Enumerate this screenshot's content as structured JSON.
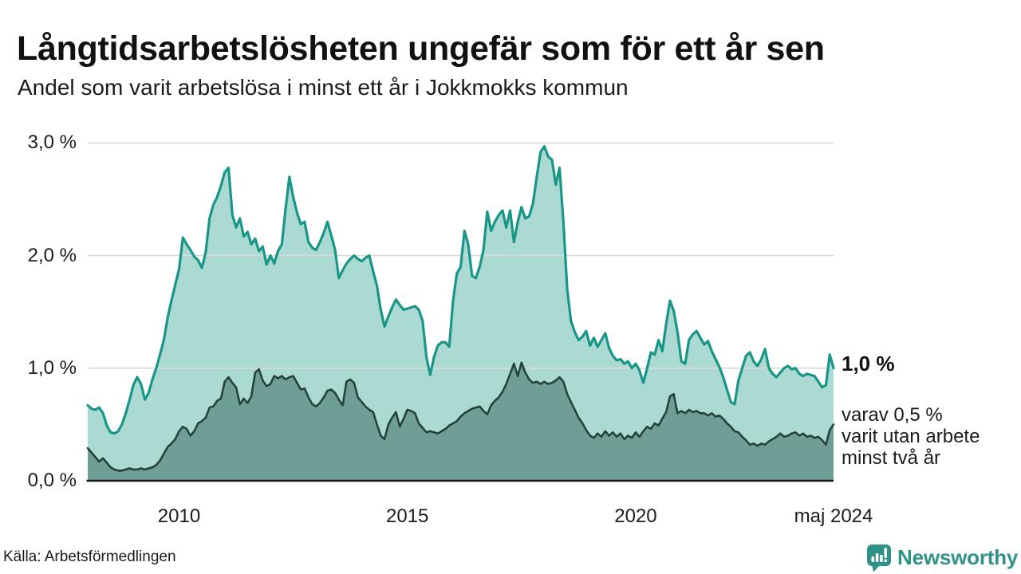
{
  "header": {
    "title": "Långtidsarbetslösheten ungefär som för ett år sen",
    "subtitle": "Andel som varit arbetslösa i minst ett år i Jokkmokks kommun"
  },
  "chart_data": {
    "type": "area",
    "x_start": "2008-01",
    "x_end": "2024-05",
    "x_interval": "monthly",
    "ylim": [
      0,
      3.0
    ],
    "grid": "horizontal",
    "y_ticks": [
      {
        "label": "3,0 %",
        "value": 3.0
      },
      {
        "label": "2,0 %",
        "value": 2.0
      },
      {
        "label": "1,0 %",
        "value": 1.0
      },
      {
        "label": "0,0 %",
        "value": 0.0
      }
    ],
    "x_ticks": [
      {
        "label": "2010",
        "month_index": 24
      },
      {
        "label": "2015",
        "month_index": 84
      },
      {
        "label": "2020",
        "month_index": 144
      },
      {
        "label": "maj 2024",
        "month_index": 196
      }
    ],
    "series": [
      {
        "name": "Andel arbetslösa minst ett år",
        "color": "#1a9689",
        "fill": "#abdad3",
        "values": [
          0.67,
          0.64,
          0.63,
          0.65,
          0.6,
          0.49,
          0.43,
          0.42,
          0.44,
          0.5,
          0.6,
          0.72,
          0.85,
          0.92,
          0.86,
          0.72,
          0.78,
          0.9,
          1.0,
          1.12,
          1.25,
          1.45,
          1.6,
          1.74,
          1.88,
          2.16,
          2.1,
          2.05,
          1.99,
          1.96,
          1.89,
          2.03,
          2.33,
          2.45,
          2.52,
          2.62,
          2.74,
          2.78,
          2.36,
          2.25,
          2.33,
          2.17,
          2.21,
          2.1,
          2.15,
          2.04,
          2.08,
          1.92,
          2.0,
          1.93,
          2.04,
          2.1,
          2.42,
          2.7,
          2.52,
          2.38,
          2.28,
          2.3,
          2.12,
          2.07,
          2.05,
          2.12,
          2.2,
          2.3,
          2.18,
          2.05,
          1.8,
          1.87,
          1.93,
          1.97,
          2.0,
          1.97,
          1.95,
          1.98,
          2.0,
          1.86,
          1.73,
          1.52,
          1.37,
          1.46,
          1.54,
          1.61,
          1.56,
          1.52,
          1.53,
          1.54,
          1.55,
          1.52,
          1.42,
          1.1,
          0.94,
          1.1,
          1.2,
          1.23,
          1.23,
          1.19,
          1.6,
          1.84,
          1.9,
          2.22,
          2.1,
          1.82,
          1.8,
          1.9,
          2.05,
          2.39,
          2.22,
          2.3,
          2.36,
          2.4,
          2.25,
          2.4,
          2.12,
          2.3,
          2.43,
          2.33,
          2.35,
          2.46,
          2.7,
          2.92,
          2.97,
          2.88,
          2.85,
          2.63,
          2.78,
          2.3,
          1.7,
          1.42,
          1.32,
          1.25,
          1.28,
          1.33,
          1.2,
          1.27,
          1.19,
          1.25,
          1.31,
          1.18,
          1.11,
          1.07,
          1.08,
          1.04,
          1.06,
          1.0,
          1.04,
          0.98,
          0.87,
          1.0,
          1.14,
          1.12,
          1.25,
          1.15,
          1.39,
          1.6,
          1.51,
          1.32,
          1.06,
          1.04,
          1.25,
          1.3,
          1.33,
          1.27,
          1.21,
          1.24,
          1.15,
          1.08,
          1.01,
          0.92,
          0.81,
          0.7,
          0.68,
          0.89,
          1.0,
          1.11,
          1.14,
          1.06,
          1.02,
          1.08,
          1.17,
          1.0,
          0.95,
          0.92,
          0.96,
          1.0,
          1.02,
          0.99,
          1.0,
          0.95,
          0.93,
          0.95,
          0.94,
          0.93,
          0.88,
          0.83,
          0.85,
          1.12,
          1.0
        ]
      },
      {
        "name": "Andel arbetslösa minst två år",
        "color": "#24433e",
        "fill": "#6f9e97",
        "values": [
          0.29,
          0.25,
          0.21,
          0.17,
          0.2,
          0.16,
          0.12,
          0.1,
          0.09,
          0.09,
          0.1,
          0.11,
          0.1,
          0.1,
          0.11,
          0.1,
          0.11,
          0.12,
          0.14,
          0.18,
          0.24,
          0.3,
          0.33,
          0.37,
          0.44,
          0.48,
          0.46,
          0.4,
          0.44,
          0.51,
          0.53,
          0.56,
          0.65,
          0.66,
          0.71,
          0.73,
          0.88,
          0.92,
          0.87,
          0.83,
          0.68,
          0.73,
          0.69,
          0.75,
          0.96,
          0.99,
          0.89,
          0.84,
          0.86,
          0.93,
          0.91,
          0.93,
          0.9,
          0.92,
          0.93,
          0.87,
          0.81,
          0.82,
          0.74,
          0.68,
          0.66,
          0.69,
          0.74,
          0.8,
          0.81,
          0.78,
          0.72,
          0.67,
          0.88,
          0.9,
          0.87,
          0.74,
          0.7,
          0.66,
          0.63,
          0.61,
          0.5,
          0.4,
          0.37,
          0.5,
          0.56,
          0.61,
          0.48,
          0.55,
          0.63,
          0.62,
          0.6,
          0.51,
          0.47,
          0.43,
          0.44,
          0.43,
          0.42,
          0.44,
          0.46,
          0.49,
          0.51,
          0.53,
          0.57,
          0.6,
          0.62,
          0.64,
          0.65,
          0.66,
          0.62,
          0.59,
          0.67,
          0.71,
          0.74,
          0.79,
          0.86,
          0.95,
          1.04,
          0.93,
          1.05,
          0.96,
          0.9,
          0.87,
          0.88,
          0.86,
          0.88,
          0.86,
          0.87,
          0.89,
          0.92,
          0.88,
          0.77,
          0.7,
          0.63,
          0.56,
          0.51,
          0.45,
          0.4,
          0.38,
          0.42,
          0.39,
          0.44,
          0.4,
          0.43,
          0.39,
          0.42,
          0.37,
          0.4,
          0.38,
          0.43,
          0.39,
          0.44,
          0.48,
          0.46,
          0.51,
          0.49,
          0.55,
          0.61,
          0.75,
          0.77,
          0.6,
          0.62,
          0.6,
          0.63,
          0.61,
          0.62,
          0.6,
          0.6,
          0.58,
          0.6,
          0.57,
          0.58,
          0.55,
          0.51,
          0.48,
          0.44,
          0.43,
          0.39,
          0.36,
          0.32,
          0.33,
          0.31,
          0.33,
          0.32,
          0.35,
          0.37,
          0.39,
          0.42,
          0.39,
          0.4,
          0.42,
          0.43,
          0.4,
          0.42,
          0.39,
          0.4,
          0.38,
          0.39,
          0.36,
          0.32,
          0.45,
          0.5
        ]
      }
    ],
    "colors": {
      "grid": "#d7dad9",
      "baseline": "#161616"
    }
  },
  "annotations": {
    "end_value_label": "1,0 %",
    "sub_lines": [
      "varav 0,5 %",
      "varit utan arbete",
      "minst två år"
    ]
  },
  "footer": {
    "source": "Källa: Arbetsförmedlingen",
    "logo_text": "Newsworthy"
  }
}
